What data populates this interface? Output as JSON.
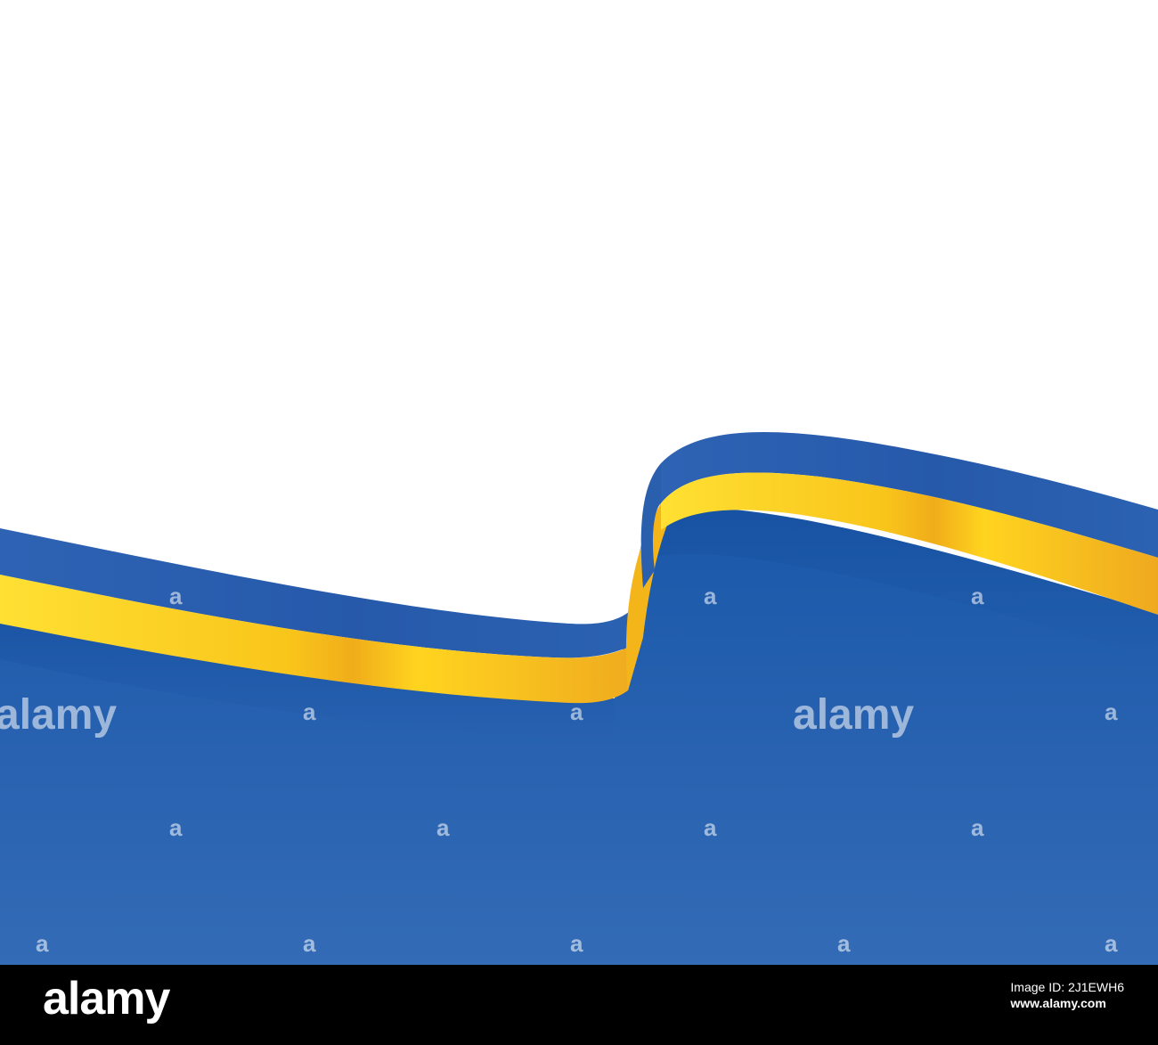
{
  "image": {
    "subject": "ukraine-flag-ribbon",
    "colors": {
      "background_top": "#ffffff",
      "flag_blue": "#2d67b5",
      "flag_blue_deep": "#1f58a6",
      "ribbon_yellow": "#ffd700",
      "ribbon_orange": "#f2b318",
      "ribbon_blue": "#2c62b4"
    }
  },
  "watermark": {
    "text": "alamy",
    "small_text": "a"
  },
  "footer": {
    "logo": "alamy",
    "image_id_label": "Image ID: 2J1EWH6",
    "url": "www.alamy.com"
  }
}
